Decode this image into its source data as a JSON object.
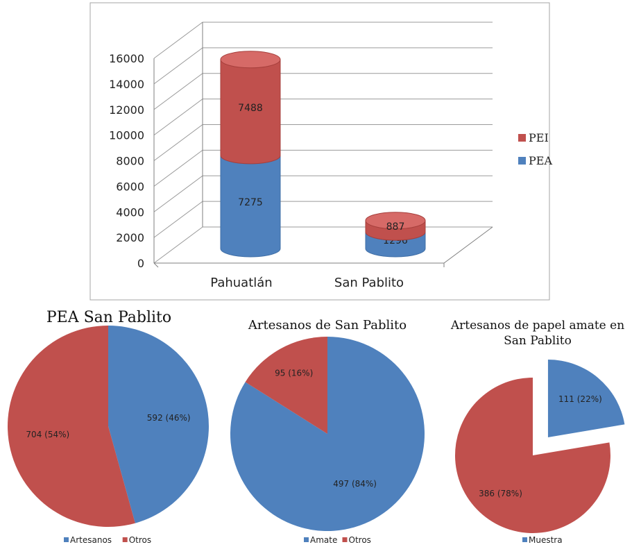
{
  "colors": {
    "blue": "#4f81bd",
    "red": "#c0504d",
    "blue_top": "#6f9bd1",
    "red_top": "#d66a67"
  },
  "chart_data": [
    {
      "type": "bar",
      "subtype": "stacked-3d-cylinder",
      "categories": [
        "Pahuatlán",
        "San Pablito"
      ],
      "series": [
        {
          "name": "PEA",
          "values": [
            7275,
            1296
          ],
          "color": "#4f81bd"
        },
        {
          "name": "PEI",
          "values": [
            7488,
            887
          ],
          "color": "#c0504d"
        }
      ],
      "ylim": [
        0,
        16000
      ],
      "yticks": [
        "0",
        "2000",
        "4000",
        "6000",
        "8000",
        "10000",
        "12000",
        "14000",
        "16000"
      ],
      "legend_position": "right",
      "legend_order": [
        "PEI",
        "PEA"
      ],
      "grid": true
    },
    {
      "type": "pie",
      "title": "PEA San Pablito",
      "labels": [
        "Artesanos",
        "Otros"
      ],
      "values": [
        592,
        704
      ],
      "data_labels": [
        "592 (46%)",
        "704 (54%)"
      ],
      "colors": [
        "#4f81bd",
        "#c0504d"
      ],
      "legend": [
        "Artesanos",
        "Otros"
      ],
      "legend_position": "bottom"
    },
    {
      "type": "pie",
      "title": "Artesanos de San Pablito",
      "labels": [
        "Amate",
        "Otros"
      ],
      "values": [
        497,
        95
      ],
      "data_labels": [
        "497 (84%)",
        "95 (16%)"
      ],
      "colors": [
        "#4f81bd",
        "#c0504d"
      ],
      "legend": [
        "Amate",
        "Otros"
      ],
      "legend_position": "bottom"
    },
    {
      "type": "pie",
      "title": "Artesanos de papel amate en San Pablito",
      "title_lines": [
        "Artesanos de papel amate en",
        "San Pablito"
      ],
      "labels": [
        "Muestra",
        ""
      ],
      "values": [
        111,
        386
      ],
      "data_labels": [
        "111 (22%)",
        "386 (78%)"
      ],
      "colors": [
        "#4f81bd",
        "#c0504d"
      ],
      "exploded": [
        true,
        false
      ],
      "legend": [
        "Muestra"
      ],
      "legend_position": "bottom"
    }
  ]
}
